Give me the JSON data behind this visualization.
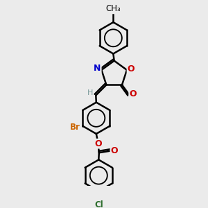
{
  "background_color": "#ebebeb",
  "bond_color": "#000000",
  "bond_width": 1.8,
  "figsize": [
    3.0,
    3.0
  ],
  "dpi": 100,
  "xlim": [
    0,
    10
  ],
  "ylim": [
    0,
    10
  ],
  "N_color": "#0000cc",
  "O_color": "#cc0000",
  "Br_color": "#cc6600",
  "Cl_color": "#2d6e2d",
  "H_color": "#7a9a9a",
  "CH3_label": "CH₃",
  "methyl_fontsize": 8.5
}
